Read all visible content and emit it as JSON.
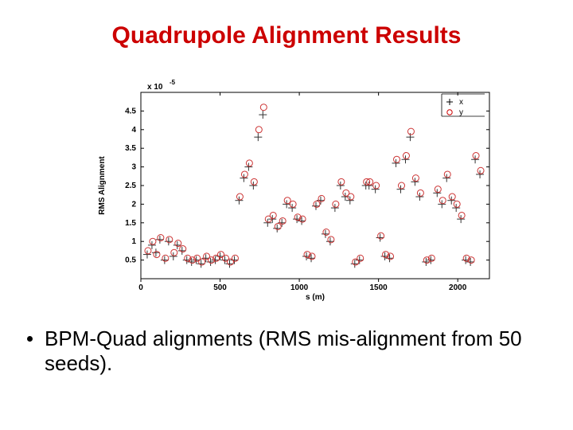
{
  "title": "Quadrupole Alignment Results",
  "bullet_text": "BPM-Quad alignments (RMS mis-alignment from 50 seeds).",
  "chart": {
    "type": "scatter",
    "exponent_label": "x 10",
    "exponent_value": "-5",
    "ylabel": "RMS Alignment",
    "xlabel": "s (m)",
    "xlim": [
      0,
      2200
    ],
    "ylim": [
      0,
      5
    ],
    "xticks": [
      0,
      500,
      1000,
      1500,
      2000
    ],
    "yticks": [
      0.5,
      1,
      1.5,
      2,
      2.5,
      3,
      3.5,
      4,
      4.5
    ],
    "background_color": "#ffffff",
    "axis_color": "#000000",
    "text_color": "#000000",
    "tick_fontsize": 10,
    "label_fontsize": 10,
    "legend": {
      "items": [
        {
          "label": "x",
          "color": "#000000",
          "marker": "plus"
        },
        {
          "label": "y",
          "color": "#cc0000",
          "marker": "circle"
        }
      ]
    },
    "series": [
      {
        "name": "x",
        "marker": "plus",
        "color": "#333333",
        "size": 5,
        "points": [
          [
            40,
            0.65
          ],
          [
            70,
            0.9
          ],
          [
            95,
            0.7
          ],
          [
            120,
            1.05
          ],
          [
            150,
            0.5
          ],
          [
            175,
            1.0
          ],
          [
            205,
            0.6
          ],
          [
            230,
            0.9
          ],
          [
            260,
            0.75
          ],
          [
            290,
            0.5
          ],
          [
            320,
            0.45
          ],
          [
            350,
            0.5
          ],
          [
            380,
            0.4
          ],
          [
            410,
            0.55
          ],
          [
            440,
            0.45
          ],
          [
            470,
            0.5
          ],
          [
            500,
            0.6
          ],
          [
            530,
            0.5
          ],
          [
            560,
            0.4
          ],
          [
            590,
            0.5
          ],
          [
            620,
            2.1
          ],
          [
            650,
            2.7
          ],
          [
            680,
            3.0
          ],
          [
            710,
            2.5
          ],
          [
            740,
            3.8
          ],
          [
            770,
            4.4
          ],
          [
            800,
            1.5
          ],
          [
            830,
            1.6
          ],
          [
            860,
            1.35
          ],
          [
            890,
            1.5
          ],
          [
            920,
            2.0
          ],
          [
            955,
            1.9
          ],
          [
            985,
            1.6
          ],
          [
            1015,
            1.55
          ],
          [
            1045,
            0.6
          ],
          [
            1075,
            0.55
          ],
          [
            1105,
            1.95
          ],
          [
            1135,
            2.1
          ],
          [
            1165,
            1.2
          ],
          [
            1195,
            1.0
          ],
          [
            1225,
            1.9
          ],
          [
            1260,
            2.5
          ],
          [
            1290,
            2.2
          ],
          [
            1320,
            2.1
          ],
          [
            1350,
            0.4
          ],
          [
            1380,
            0.5
          ],
          [
            1420,
            2.5
          ],
          [
            1440,
            2.5
          ],
          [
            1480,
            2.4
          ],
          [
            1510,
            1.1
          ],
          [
            1540,
            0.6
          ],
          [
            1570,
            0.55
          ],
          [
            1610,
            3.1
          ],
          [
            1640,
            2.4
          ],
          [
            1670,
            3.2
          ],
          [
            1700,
            3.8
          ],
          [
            1730,
            2.6
          ],
          [
            1760,
            2.2
          ],
          [
            1800,
            0.45
          ],
          [
            1830,
            0.5
          ],
          [
            1870,
            2.3
          ],
          [
            1900,
            2.0
          ],
          [
            1930,
            2.7
          ],
          [
            1960,
            2.1
          ],
          [
            1990,
            1.9
          ],
          [
            2020,
            1.6
          ],
          [
            2050,
            0.5
          ],
          [
            2080,
            0.45
          ],
          [
            2110,
            3.2
          ],
          [
            2140,
            2.8
          ]
        ]
      },
      {
        "name": "y",
        "marker": "circle",
        "color": "#cc3333",
        "size": 4,
        "points": [
          [
            45,
            0.75
          ],
          [
            75,
            1.0
          ],
          [
            100,
            0.65
          ],
          [
            125,
            1.1
          ],
          [
            155,
            0.55
          ],
          [
            180,
            1.05
          ],
          [
            210,
            0.7
          ],
          [
            235,
            0.95
          ],
          [
            265,
            0.8
          ],
          [
            295,
            0.55
          ],
          [
            325,
            0.5
          ],
          [
            355,
            0.55
          ],
          [
            385,
            0.45
          ],
          [
            415,
            0.6
          ],
          [
            445,
            0.5
          ],
          [
            475,
            0.55
          ],
          [
            505,
            0.65
          ],
          [
            535,
            0.55
          ],
          [
            565,
            0.45
          ],
          [
            595,
            0.55
          ],
          [
            625,
            2.2
          ],
          [
            655,
            2.8
          ],
          [
            685,
            3.1
          ],
          [
            715,
            2.6
          ],
          [
            745,
            4.0
          ],
          [
            775,
            4.6
          ],
          [
            805,
            1.6
          ],
          [
            835,
            1.7
          ],
          [
            865,
            1.4
          ],
          [
            895,
            1.55
          ],
          [
            925,
            2.1
          ],
          [
            960,
            2.0
          ],
          [
            990,
            1.65
          ],
          [
            1020,
            1.6
          ],
          [
            1050,
            0.65
          ],
          [
            1080,
            0.6
          ],
          [
            1110,
            2.0
          ],
          [
            1140,
            2.15
          ],
          [
            1170,
            1.25
          ],
          [
            1200,
            1.05
          ],
          [
            1230,
            2.0
          ],
          [
            1265,
            2.6
          ],
          [
            1295,
            2.3
          ],
          [
            1325,
            2.2
          ],
          [
            1355,
            0.45
          ],
          [
            1385,
            0.55
          ],
          [
            1425,
            2.6
          ],
          [
            1445,
            2.6
          ],
          [
            1485,
            2.5
          ],
          [
            1515,
            1.15
          ],
          [
            1545,
            0.65
          ],
          [
            1575,
            0.6
          ],
          [
            1615,
            3.2
          ],
          [
            1645,
            2.5
          ],
          [
            1675,
            3.3
          ],
          [
            1705,
            3.95
          ],
          [
            1735,
            2.7
          ],
          [
            1765,
            2.3
          ],
          [
            1805,
            0.5
          ],
          [
            1835,
            0.55
          ],
          [
            1875,
            2.4
          ],
          [
            1905,
            2.1
          ],
          [
            1935,
            2.8
          ],
          [
            1965,
            2.2
          ],
          [
            1995,
            2.0
          ],
          [
            2025,
            1.7
          ],
          [
            2055,
            0.55
          ],
          [
            2085,
            0.5
          ],
          [
            2115,
            3.3
          ],
          [
            2145,
            2.9
          ]
        ]
      }
    ]
  }
}
